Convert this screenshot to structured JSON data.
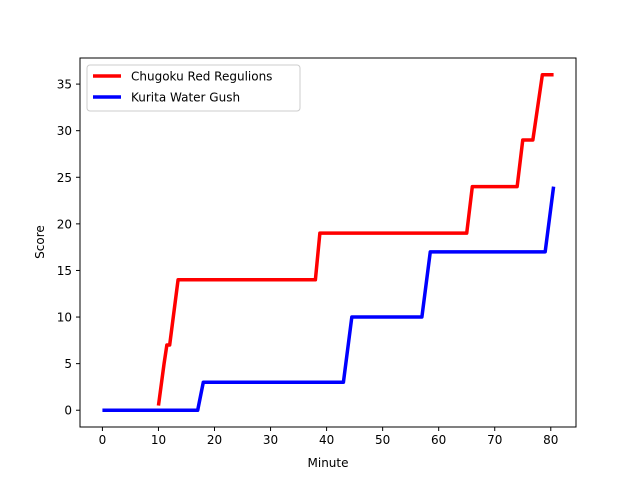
{
  "chart_data": {
    "type": "line",
    "title": "",
    "xlabel": "Minute",
    "ylabel": "Score",
    "xlim": [
      -4,
      84.5
    ],
    "ylim": [
      -1.8,
      37.8
    ],
    "xticks": [
      0,
      10,
      20,
      30,
      40,
      50,
      60,
      70,
      80
    ],
    "yticks": [
      0,
      5,
      10,
      15,
      20,
      25,
      30,
      35
    ],
    "grid": false,
    "legend_position": "upper-left",
    "series": [
      {
        "name": "Chugoku Red Regulions",
        "color": "#ff0000",
        "points": [
          [
            10,
            0.5
          ],
          [
            11,
            5
          ],
          [
            11.5,
            7
          ],
          [
            12,
            7
          ],
          [
            13.5,
            14
          ],
          [
            38,
            14
          ],
          [
            38.8,
            19
          ],
          [
            65,
            19
          ],
          [
            66,
            24
          ],
          [
            74,
            24
          ],
          [
            75,
            29
          ],
          [
            76.8,
            29
          ],
          [
            78.5,
            36
          ],
          [
            80.5,
            36
          ]
        ]
      },
      {
        "name": "Kurita Water Gush",
        "color": "#0000ff",
        "points": [
          [
            0,
            0
          ],
          [
            17,
            0
          ],
          [
            18,
            3
          ],
          [
            43,
            3
          ],
          [
            44.5,
            10
          ],
          [
            57,
            10
          ],
          [
            58.5,
            17
          ],
          [
            79,
            17
          ],
          [
            80.5,
            24
          ]
        ]
      }
    ]
  }
}
